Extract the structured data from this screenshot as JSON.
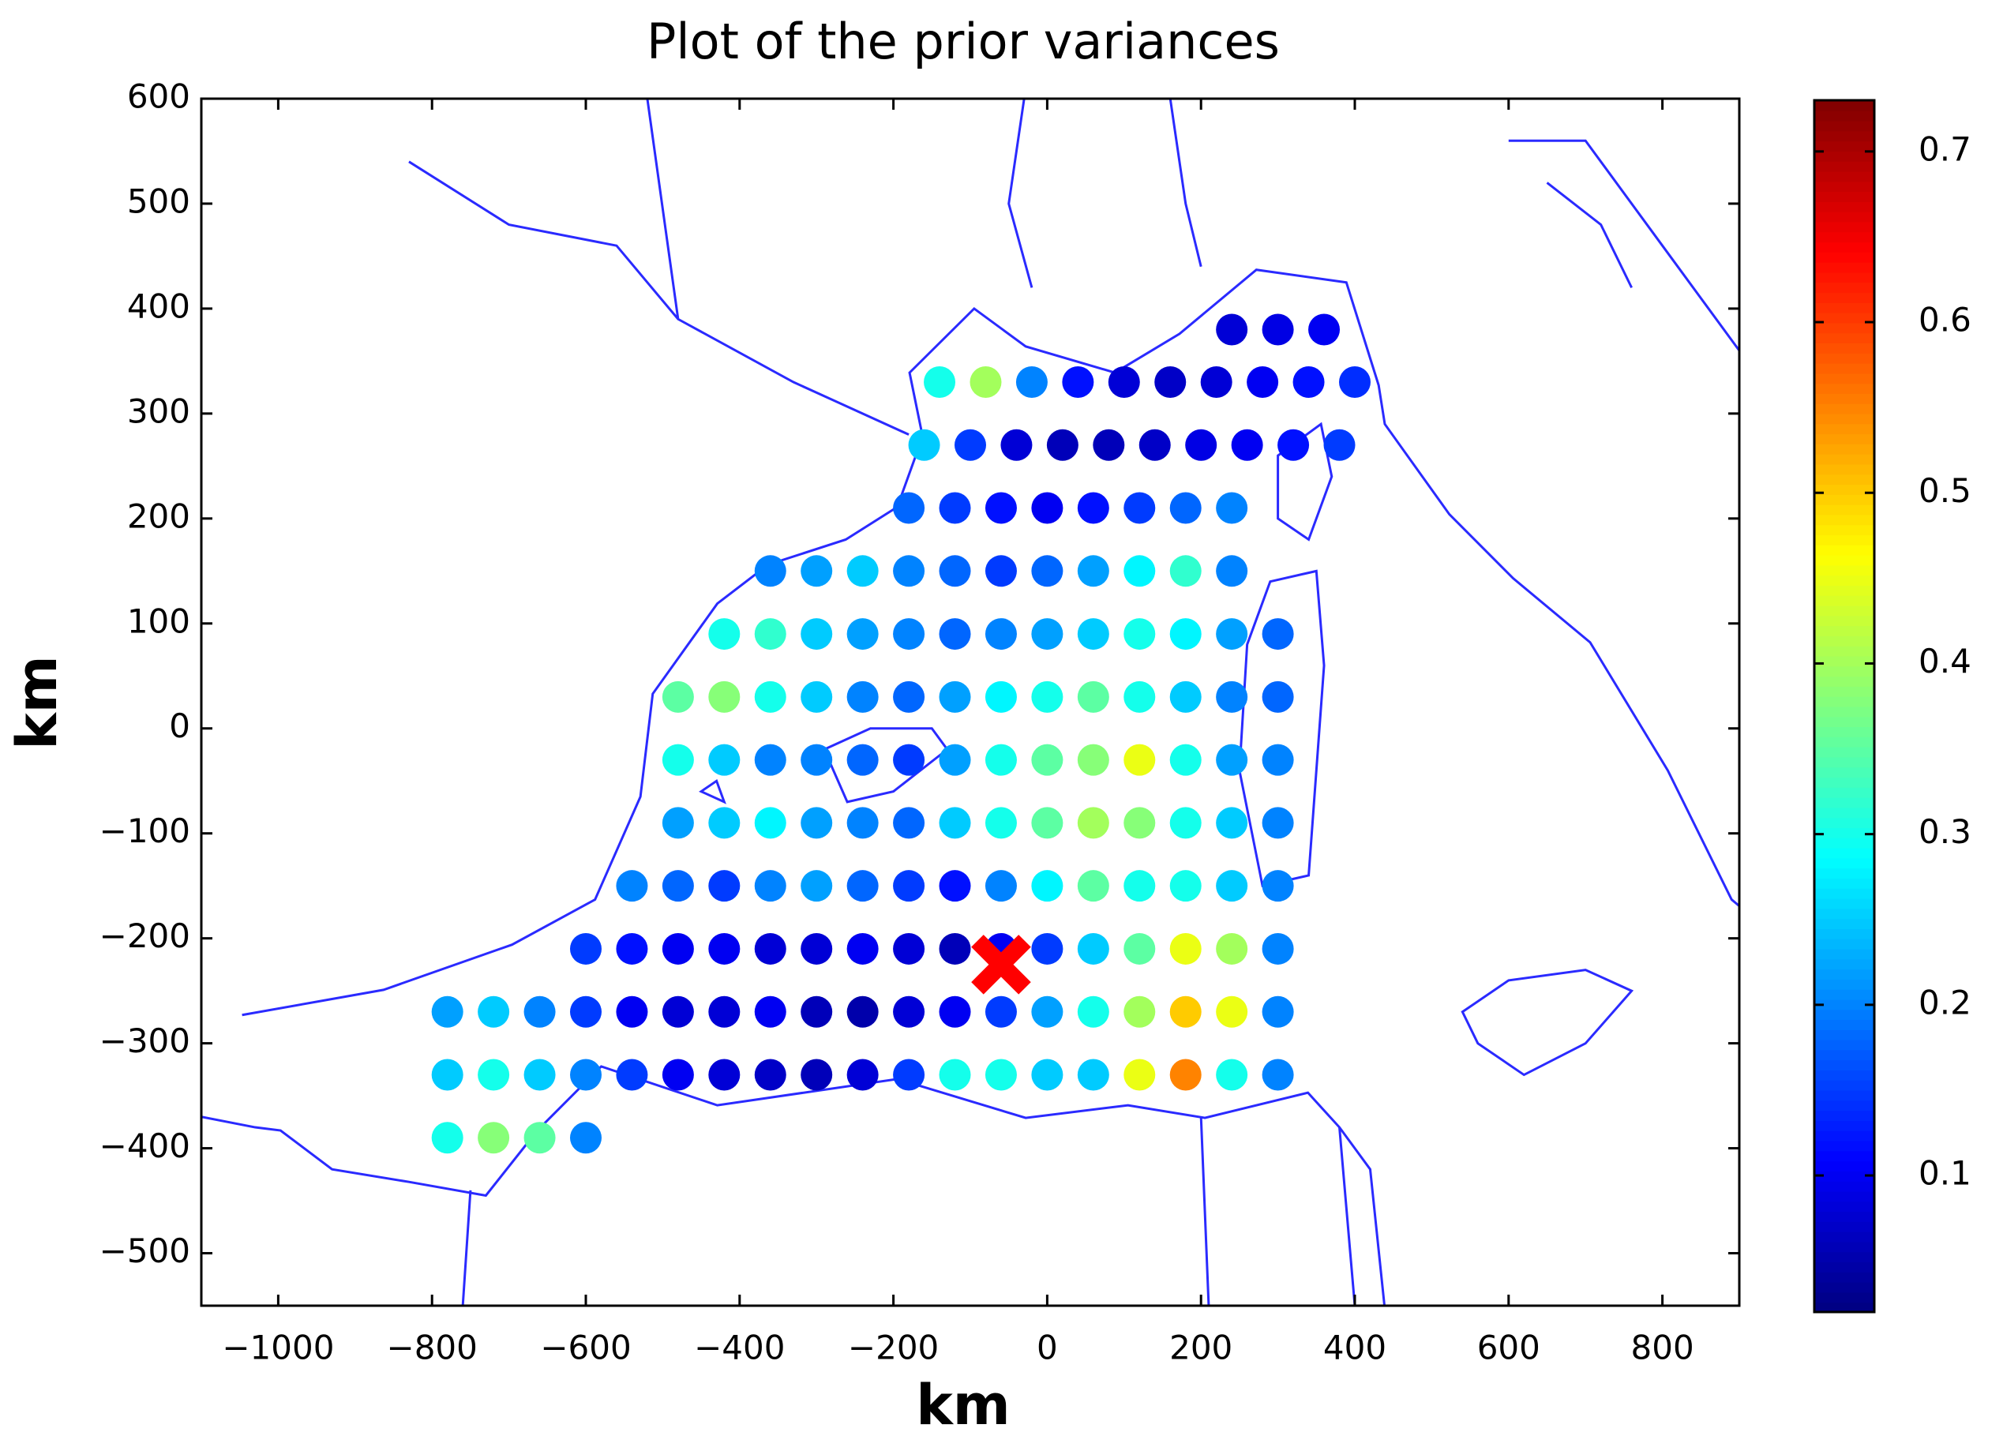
{
  "chart_data": {
    "type": "scatter",
    "title": "Plot of the prior variances",
    "xlabel": "km",
    "ylabel": "km",
    "xlim": [
      -1100,
      900
    ],
    "ylim": [
      -550,
      600
    ],
    "xticks": [
      {
        "value": -1000,
        "label": "−1000"
      },
      {
        "value": -800,
        "label": "−800"
      },
      {
        "value": -600,
        "label": "−600"
      },
      {
        "value": -400,
        "label": "−400"
      },
      {
        "value": -200,
        "label": "−200"
      },
      0,
      200,
      400,
      600,
      800
    ],
    "yticks": [
      {
        "value": -500,
        "label": "−500"
      },
      {
        "value": -400,
        "label": "−400"
      },
      {
        "value": -300,
        "label": "−300"
      },
      {
        "value": -200,
        "label": "−200"
      },
      {
        "value": -100,
        "label": "−100"
      },
      0,
      100,
      200,
      300,
      400,
      500,
      600
    ],
    "colormap": "jet",
    "clim": [
      0.02,
      0.73
    ],
    "cticks": [
      0.1,
      0.2,
      0.3,
      0.4,
      0.5,
      0.6,
      0.7
    ],
    "x": [
      240,
      300,
      360,
      -140,
      -80,
      -20,
      40,
      100,
      160,
      220,
      280,
      340,
      400,
      -160,
      -100,
      -40,
      20,
      80,
      140,
      200,
      260,
      320,
      380,
      -180,
      -120,
      -60,
      0,
      60,
      120,
      180,
      240,
      -360,
      -300,
      -240,
      -180,
      -120,
      -60,
      0,
      60,
      120,
      180,
      240,
      -420,
      -360,
      -300,
      -240,
      -180,
      -120,
      -60,
      0,
      60,
      120,
      180,
      240,
      300,
      -480,
      -420,
      -360,
      -300,
      -240,
      -180,
      -120,
      -60,
      0,
      60,
      120,
      180,
      240,
      300,
      -480,
      -420,
      -360,
      -300,
      -240,
      -180,
      -120,
      -60,
      0,
      60,
      120,
      180,
      240,
      300,
      -480,
      -420,
      -360,
      -300,
      -240,
      -180,
      -120,
      -60,
      0,
      60,
      120,
      180,
      240,
      300,
      -540,
      -480,
      -420,
      -360,
      -300,
      -240,
      -180,
      -120,
      -60,
      0,
      60,
      120,
      180,
      240,
      300,
      -600,
      -540,
      -480,
      -420,
      -360,
      -300,
      -240,
      -180,
      -120,
      -60,
      0,
      60,
      120,
      180,
      240,
      300,
      -780,
      -720,
      -660,
      -600,
      -540,
      -480,
      -420,
      -360,
      -300,
      -240,
      -180,
      -120,
      -60,
      0,
      60,
      120,
      180,
      240,
      300,
      -780,
      -720,
      -660,
      -600,
      -540,
      -480,
      -420,
      -360,
      -300,
      -240,
      -180,
      -120,
      -60,
      0,
      60,
      120,
      180,
      240,
      300,
      -780,
      -720,
      -660,
      -600
    ],
    "y": [
      380,
      380,
      380,
      330,
      330,
      330,
      330,
      330,
      330,
      330,
      330,
      330,
      330,
      270,
      270,
      270,
      270,
      270,
      270,
      270,
      270,
      270,
      270,
      210,
      210,
      210,
      210,
      210,
      210,
      210,
      210,
      150,
      150,
      150,
      150,
      150,
      150,
      150,
      150,
      150,
      150,
      150,
      90,
      90,
      90,
      90,
      90,
      90,
      90,
      90,
      90,
      90,
      90,
      90,
      90,
      30,
      30,
      30,
      30,
      30,
      30,
      30,
      30,
      30,
      30,
      30,
      30,
      30,
      30,
      -30,
      -30,
      -30,
      -30,
      -30,
      -30,
      -30,
      -30,
      -30,
      -30,
      -30,
      -30,
      -30,
      -30,
      -90,
      -90,
      -90,
      -90,
      -90,
      -90,
      -90,
      -90,
      -90,
      -90,
      -90,
      -90,
      -90,
      -90,
      -150,
      -150,
      -150,
      -150,
      -150,
      -150,
      -150,
      -150,
      -150,
      -150,
      -150,
      -150,
      -150,
      -150,
      -150,
      -210,
      -210,
      -210,
      -210,
      -210,
      -210,
      -210,
      -210,
      -210,
      -210,
      -210,
      -210,
      -210,
      -210,
      -210,
      -210,
      -270,
      -270,
      -270,
      -270,
      -270,
      -270,
      -270,
      -270,
      -270,
      -270,
      -270,
      -270,
      -270,
      -270,
      -270,
      -270,
      -270,
      -270,
      -270,
      -330,
      -330,
      -330,
      -330,
      -330,
      -330,
      -330,
      -330,
      -330,
      -330,
      -330,
      -330,
      -330,
      -330,
      -330,
      -330,
      -330,
      -330,
      -330,
      -390,
      -390,
      -390,
      -390
    ],
    "values": [
      0.08,
      0.09,
      0.1,
      0.3,
      0.4,
      0.2,
      0.12,
      0.08,
      0.07,
      0.08,
      0.1,
      0.12,
      0.14,
      0.25,
      0.15,
      0.08,
      0.06,
      0.06,
      0.07,
      0.09,
      0.1,
      0.12,
      0.15,
      0.18,
      0.15,
      0.12,
      0.1,
      0.12,
      0.15,
      0.18,
      0.2,
      0.2,
      0.22,
      0.25,
      0.2,
      0.18,
      0.15,
      0.18,
      0.22,
      0.28,
      0.32,
      0.2,
      0.3,
      0.32,
      0.25,
      0.22,
      0.2,
      0.18,
      0.2,
      0.22,
      0.25,
      0.3,
      0.28,
      0.22,
      0.18,
      0.35,
      0.38,
      0.3,
      0.25,
      0.2,
      0.18,
      0.22,
      0.28,
      0.3,
      0.35,
      0.3,
      0.25,
      0.2,
      0.18,
      0.3,
      0.25,
      0.2,
      0.2,
      0.18,
      0.15,
      0.22,
      0.3,
      0.35,
      0.38,
      0.45,
      0.3,
      0.22,
      0.2,
      0.22,
      0.25,
      0.28,
      0.22,
      0.2,
      0.18,
      0.25,
      0.3,
      0.35,
      0.4,
      0.38,
      0.3,
      0.25,
      0.2,
      0.2,
      0.18,
      0.15,
      0.2,
      0.22,
      0.18,
      0.15,
      0.12,
      0.2,
      0.28,
      0.35,
      0.3,
      0.3,
      0.25,
      0.2,
      0.15,
      0.12,
      0.1,
      0.1,
      0.08,
      0.08,
      0.1,
      0.08,
      0.06,
      0.1,
      0.15,
      0.25,
      0.35,
      0.45,
      0.4,
      0.2,
      0.22,
      0.25,
      0.2,
      0.15,
      0.1,
      0.08,
      0.08,
      0.1,
      0.06,
      0.05,
      0.08,
      0.1,
      0.15,
      0.22,
      0.3,
      0.4,
      0.5,
      0.45,
      0.2,
      0.25,
      0.3,
      0.25,
      0.2,
      0.15,
      0.1,
      0.08,
      0.07,
      0.06,
      0.08,
      0.15,
      0.3,
      0.3,
      0.25,
      0.25,
      0.45,
      0.55,
      0.3,
      0.2,
      0.3,
      0.38,
      0.35,
      0.2
    ],
    "marker": {
      "x": [
        -60
      ],
      "y": [
        -225
      ],
      "color": "#ff0000"
    }
  }
}
